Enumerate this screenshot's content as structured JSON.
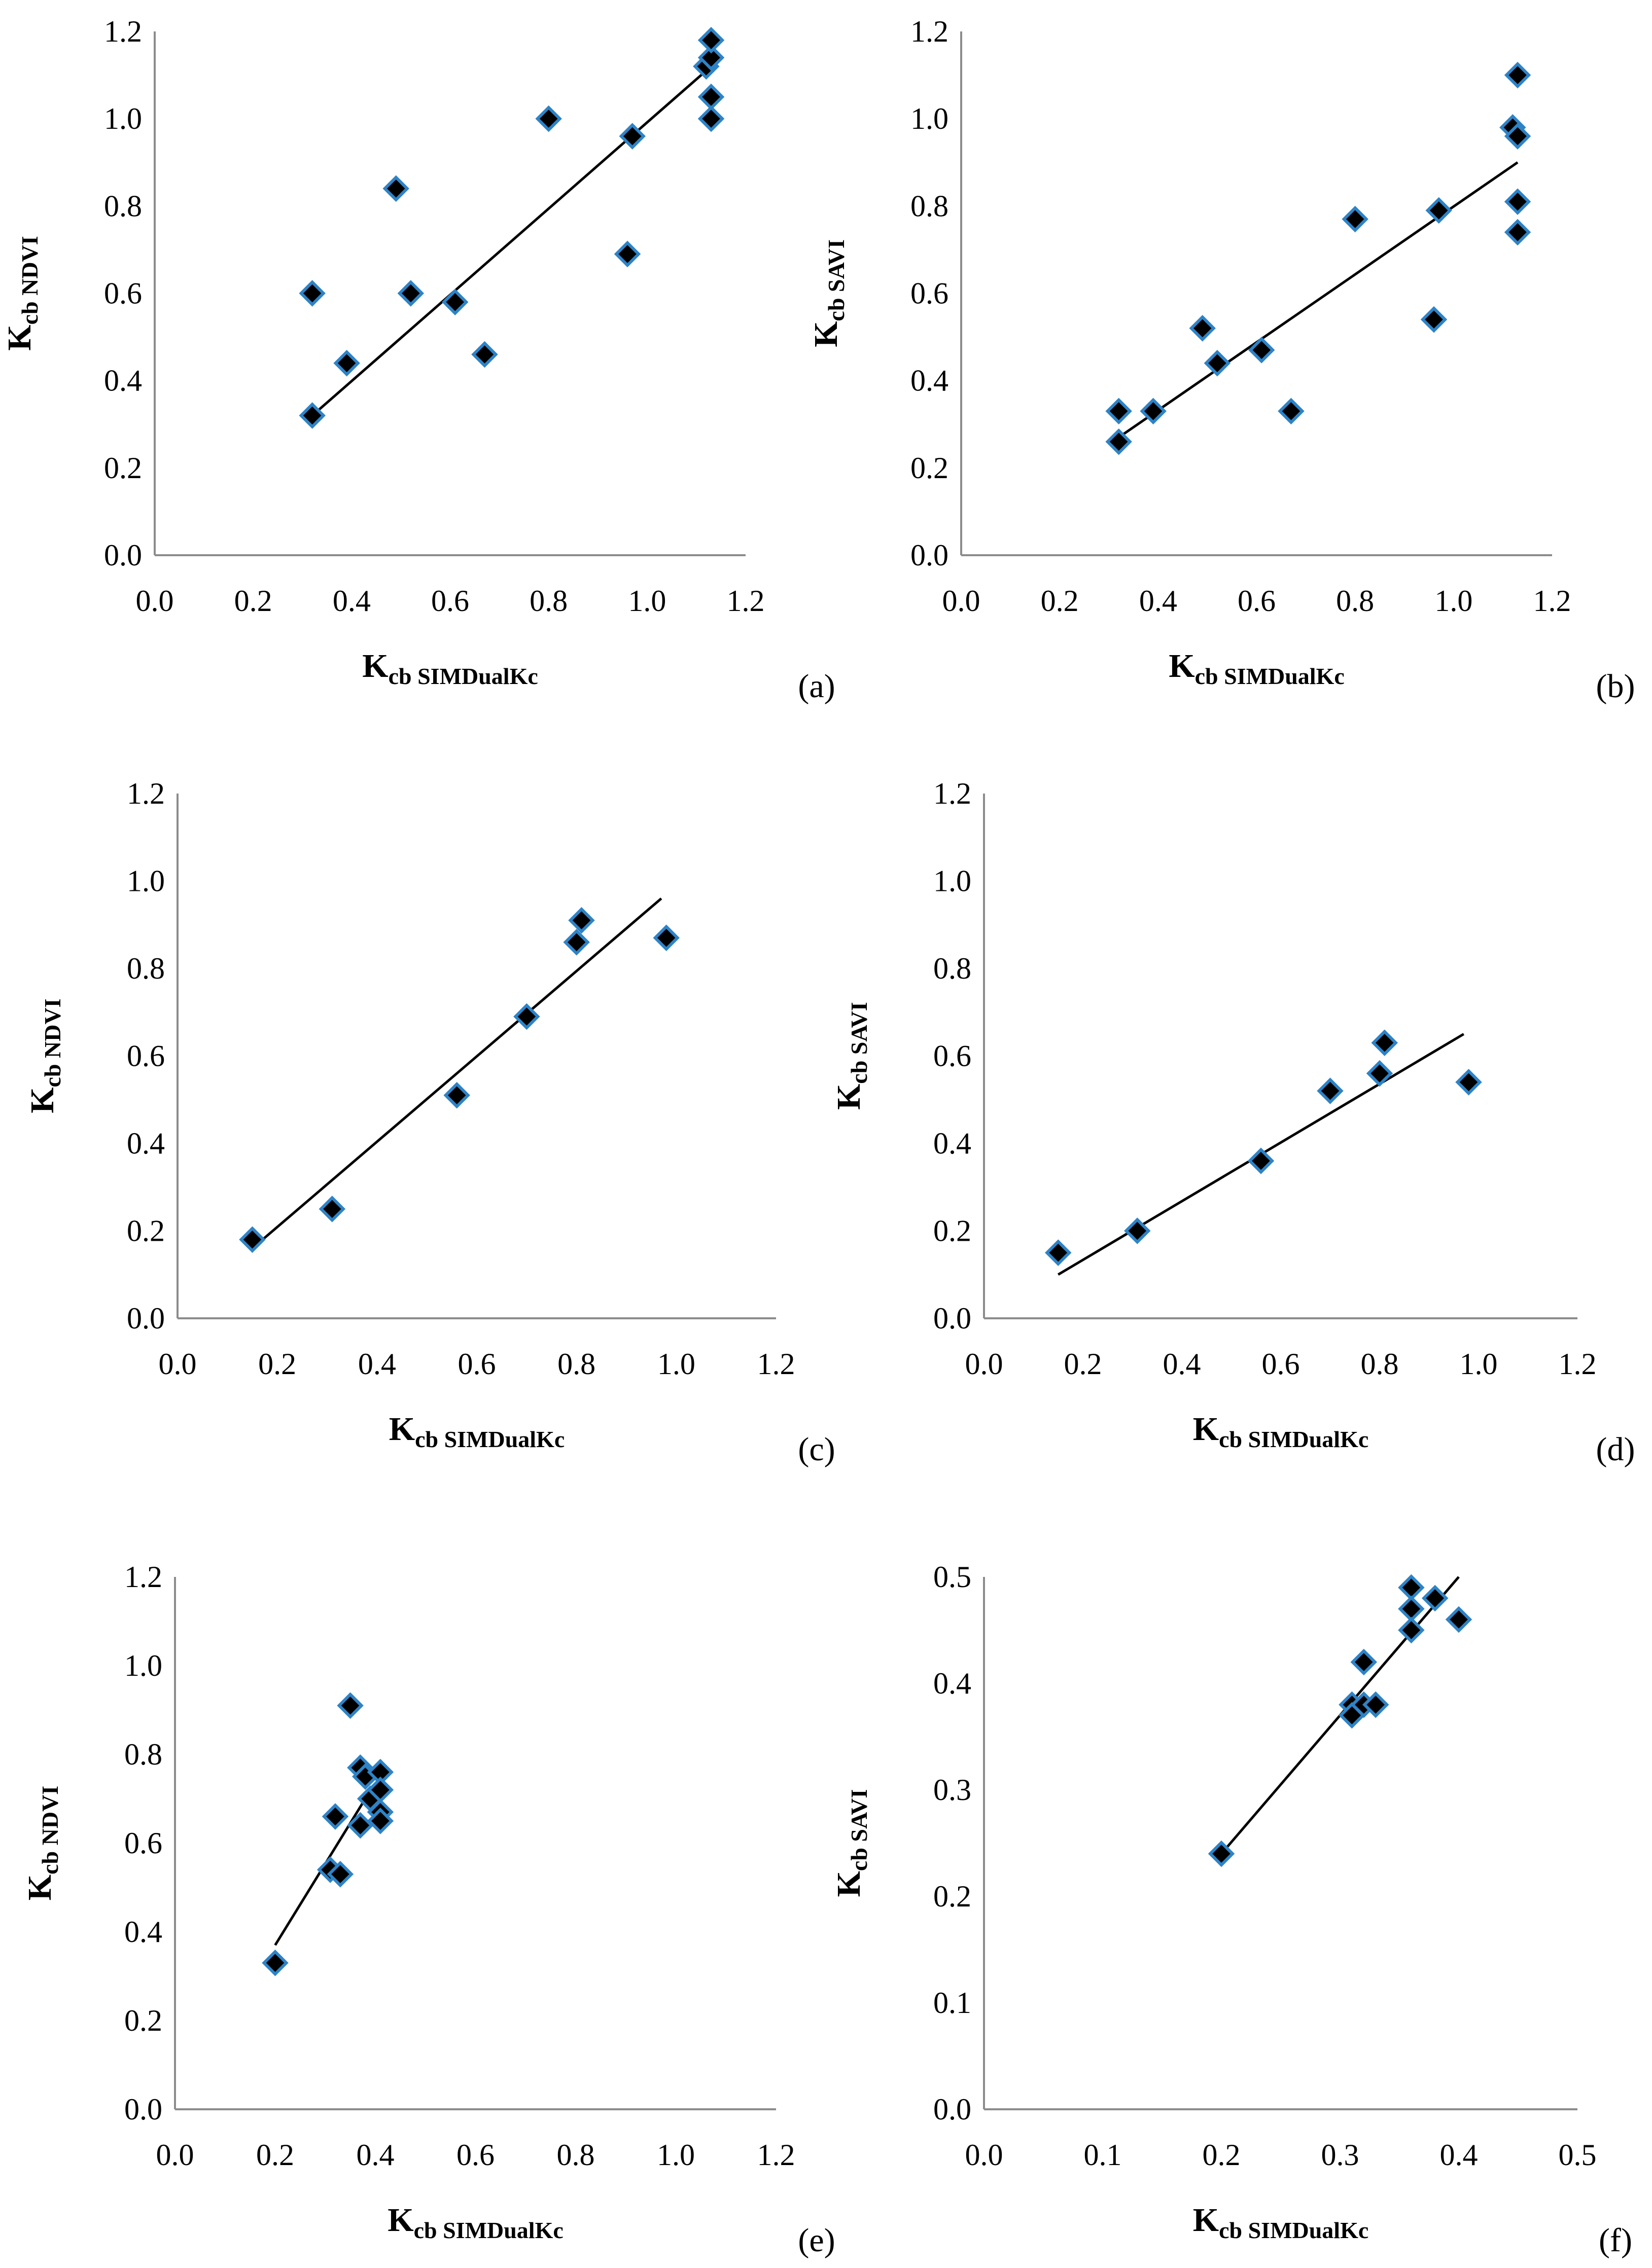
{
  "chart_data": [
    {
      "id": "a",
      "type": "scatter",
      "panel_label": "(a)",
      "xlabel_main": "K",
      "xlabel_sub": "cb SIMDualKc",
      "ylabel_main": "K",
      "ylabel_sub": "cb NDVI",
      "xlim": [
        0,
        1.2
      ],
      "ylim": [
        0,
        1.2
      ],
      "xticks": [
        "0.0",
        "0.2",
        "0.4",
        "0.6",
        "0.8",
        "1.0",
        "1.2"
      ],
      "yticks": [
        "0.0",
        "0.2",
        "0.4",
        "0.6",
        "0.8",
        "1.0",
        "1.2"
      ],
      "points": [
        [
          0.32,
          0.32
        ],
        [
          0.32,
          0.6
        ],
        [
          0.39,
          0.44
        ],
        [
          0.49,
          0.84
        ],
        [
          0.52,
          0.6
        ],
        [
          0.61,
          0.58
        ],
        [
          0.67,
          0.46
        ],
        [
          0.8,
          1.0
        ],
        [
          0.96,
          0.69
        ],
        [
          0.97,
          0.96
        ],
        [
          1.12,
          1.12
        ],
        [
          1.13,
          1.14
        ],
        [
          1.13,
          1.18
        ],
        [
          1.13,
          1.05
        ],
        [
          1.13,
          1.0
        ]
      ],
      "trendline": [
        [
          0.32,
          0.32
        ],
        [
          1.13,
          1.12
        ]
      ]
    },
    {
      "id": "b",
      "type": "scatter",
      "panel_label": "(b)",
      "xlabel_main": "K",
      "xlabel_sub": "cb SIMDualKc",
      "ylabel_main": "K",
      "ylabel_sub": "cb SAVI",
      "xlim": [
        0,
        1.2
      ],
      "ylim": [
        0,
        1.2
      ],
      "xticks": [
        "0.0",
        "0.2",
        "0.4",
        "0.6",
        "0.8",
        "1.0",
        "1.2"
      ],
      "yticks": [
        "0.0",
        "0.2",
        "0.4",
        "0.6",
        "0.8",
        "1.0",
        "1.2"
      ],
      "points": [
        [
          0.32,
          0.26
        ],
        [
          0.32,
          0.33
        ],
        [
          0.39,
          0.33
        ],
        [
          0.49,
          0.52
        ],
        [
          0.52,
          0.44
        ],
        [
          0.61,
          0.47
        ],
        [
          0.67,
          0.33
        ],
        [
          0.8,
          0.77
        ],
        [
          0.96,
          0.54
        ],
        [
          0.97,
          0.79
        ],
        [
          1.12,
          0.98
        ],
        [
          1.13,
          1.1
        ],
        [
          1.13,
          0.96
        ],
        [
          1.13,
          0.81
        ],
        [
          1.13,
          0.74
        ]
      ],
      "trendline": [
        [
          0.32,
          0.27
        ],
        [
          1.13,
          0.9
        ]
      ]
    },
    {
      "id": "c",
      "type": "scatter",
      "panel_label": "(c)",
      "xlabel_main": "K",
      "xlabel_sub": "cb SIMDualKc",
      "ylabel_main": "K",
      "ylabel_sub": "cb NDVI",
      "xlim": [
        0,
        1.2
      ],
      "ylim": [
        0,
        1.2
      ],
      "xticks": [
        "0.0",
        "0.2",
        "0.4",
        "0.6",
        "0.8",
        "1.0",
        "1.2"
      ],
      "yticks": [
        "0.0",
        "0.2",
        "0.4",
        "0.6",
        "0.8",
        "1.0",
        "1.2"
      ],
      "points": [
        [
          0.15,
          0.18
        ],
        [
          0.31,
          0.25
        ],
        [
          0.56,
          0.51
        ],
        [
          0.7,
          0.69
        ],
        [
          0.8,
          0.86
        ],
        [
          0.81,
          0.91
        ],
        [
          0.98,
          0.87
        ]
      ],
      "trendline": [
        [
          0.15,
          0.16
        ],
        [
          0.97,
          0.96
        ]
      ]
    },
    {
      "id": "d",
      "type": "scatter",
      "panel_label": "(d)",
      "xlabel_main": "K",
      "xlabel_sub": "cb SIMDualKc",
      "ylabel_main": "K",
      "ylabel_sub": "cb SAVI",
      "xlim": [
        0,
        1.2
      ],
      "ylim": [
        0,
        1.2
      ],
      "xticks": [
        "0.0",
        "0.2",
        "0.4",
        "0.6",
        "0.8",
        "1.0",
        "1.2"
      ],
      "yticks": [
        "0.0",
        "0.2",
        "0.4",
        "0.6",
        "0.8",
        "1.0",
        "1.2"
      ],
      "points": [
        [
          0.15,
          0.15
        ],
        [
          0.31,
          0.2
        ],
        [
          0.56,
          0.36
        ],
        [
          0.7,
          0.52
        ],
        [
          0.8,
          0.56
        ],
        [
          0.81,
          0.63
        ],
        [
          0.98,
          0.54
        ]
      ],
      "trendline": [
        [
          0.15,
          0.1
        ],
        [
          0.97,
          0.65
        ]
      ]
    },
    {
      "id": "e",
      "type": "scatter",
      "panel_label": "(e)",
      "xlabel_main": "K",
      "xlabel_sub": "cb SIMDualKc",
      "ylabel_main": "K",
      "ylabel_sub": "cb NDVI",
      "xlim": [
        0,
        1.2
      ],
      "ylim": [
        0,
        1.2
      ],
      "xticks": [
        "0.0",
        "0.2",
        "0.4",
        "0.6",
        "0.8",
        "1.0",
        "1.2"
      ],
      "yticks": [
        "0.0",
        "0.2",
        "0.4",
        "0.6",
        "0.8",
        "1.0",
        "1.2"
      ],
      "points": [
        [
          0.2,
          0.33
        ],
        [
          0.31,
          0.54
        ],
        [
          0.32,
          0.66
        ],
        [
          0.33,
          0.53
        ],
        [
          0.35,
          0.91
        ],
        [
          0.37,
          0.77
        ],
        [
          0.37,
          0.64
        ],
        [
          0.38,
          0.75
        ],
        [
          0.39,
          0.7
        ],
        [
          0.41,
          0.76
        ],
        [
          0.41,
          0.72
        ],
        [
          0.41,
          0.67
        ],
        [
          0.41,
          0.65
        ]
      ],
      "trendline": [
        [
          0.2,
          0.37
        ],
        [
          0.38,
          0.7
        ]
      ]
    },
    {
      "id": "f",
      "type": "scatter",
      "panel_label": "(f)",
      "xlabel_main": "K",
      "xlabel_sub": "cb SIMDualKc",
      "ylabel_main": "K",
      "ylabel_sub": "cb SAVI",
      "xlim": [
        0,
        0.5
      ],
      "ylim": [
        0,
        0.5
      ],
      "xticks": [
        "0.0",
        "0.1",
        "0.2",
        "0.3",
        "0.4",
        "0.5"
      ],
      "yticks": [
        "0.0",
        "0.1",
        "0.2",
        "0.3",
        "0.4",
        "0.5"
      ],
      "points": [
        [
          0.2,
          0.24
        ],
        [
          0.31,
          0.38
        ],
        [
          0.31,
          0.37
        ],
        [
          0.32,
          0.42
        ],
        [
          0.32,
          0.38
        ],
        [
          0.33,
          0.38
        ],
        [
          0.36,
          0.49
        ],
        [
          0.36,
          0.47
        ],
        [
          0.36,
          0.45
        ],
        [
          0.38,
          0.48
        ],
        [
          0.4,
          0.46
        ]
      ],
      "trendline": [
        [
          0.2,
          0.24
        ],
        [
          0.4,
          0.5
        ]
      ]
    }
  ]
}
